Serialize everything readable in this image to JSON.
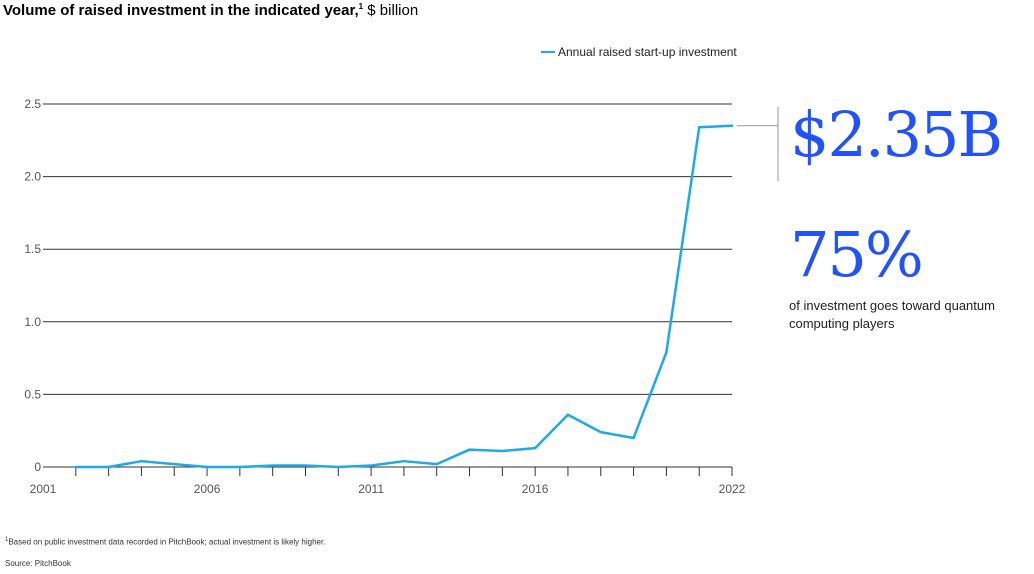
{
  "header": {
    "title": "Volume of raised investment in the indicated year,",
    "footnote_mark": "1",
    "unit": "$ billion"
  },
  "callouts": {
    "value": "$2.35B",
    "percent": "75%",
    "percent_desc": "of investment goes toward quantum computing players"
  },
  "footer": {
    "footnote_mark": "1",
    "footnote": "Based on public investment data recorded in PitchBook; actual investment is likely higher.",
    "source": "Source: PitchBook"
  },
  "colors": {
    "line": "#1fa9e6",
    "accent": "#2251ff",
    "grid": "#333333"
  },
  "chart_data": {
    "type": "line",
    "title": "Volume of raised investment in the indicated year",
    "xlabel": "",
    "ylabel": "$ billion",
    "legend": "top-right",
    "grid": true,
    "xlim": [
      2001,
      2022
    ],
    "ylim": [
      0,
      2.5
    ],
    "x_ticks": [
      2001,
      2006,
      2011,
      2016,
      2022
    ],
    "x_tick_labels": [
      "2001",
      "2006",
      "2011",
      "2016",
      "2022"
    ],
    "y_ticks": [
      0,
      0.5,
      1.0,
      1.5,
      2.0,
      2.5
    ],
    "y_tick_labels": [
      "0",
      "0.5",
      "1.0",
      "1.5",
      "2.0",
      "2.5"
    ],
    "series": [
      {
        "name": "Annual raised start-up investment",
        "x": [
          2002,
          2003,
          2004,
          2005,
          2006,
          2007,
          2008,
          2009,
          2010,
          2011,
          2012,
          2013,
          2014,
          2015,
          2016,
          2017,
          2018,
          2019,
          2020,
          2021,
          2022
        ],
        "values": [
          0.0,
          0.0,
          0.04,
          0.02,
          0.0,
          0.0,
          0.01,
          0.01,
          0.0,
          0.01,
          0.04,
          0.02,
          0.12,
          0.11,
          0.13,
          0.36,
          0.24,
          0.2,
          0.79,
          2.34,
          2.35
        ]
      }
    ]
  }
}
